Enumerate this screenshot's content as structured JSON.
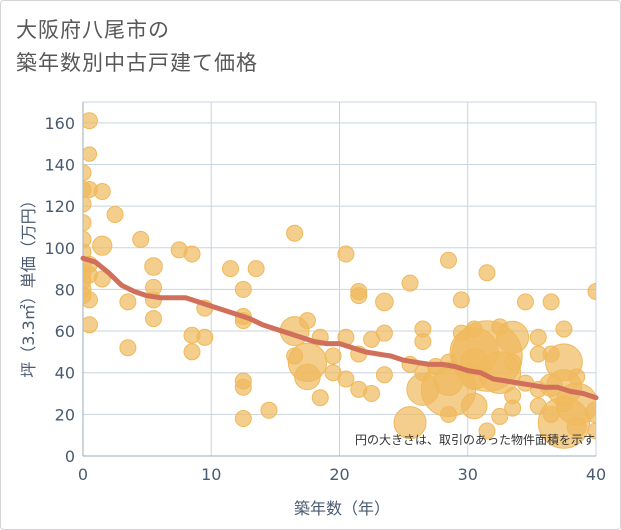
{
  "title_line1": "大阪府八尾市の",
  "title_line2": "築年数別中古戸建て価格",
  "chart_data": {
    "type": "scatter",
    "title": "大阪府八尾市の築年数別中古戸建て価格",
    "xlabel": "築年数（年）",
    "ylabel": "坪（3.3㎡）単価（万円）",
    "xlim": [
      0,
      40
    ],
    "ylim": [
      0,
      170
    ],
    "xticks": [
      0,
      10,
      20,
      30,
      40
    ],
    "yticks": [
      0,
      20,
      40,
      60,
      80,
      100,
      120,
      140,
      160
    ],
    "note": "円の大きさは、取引のあった物件面積を示す",
    "colors": {
      "bubble": "#f0b95c",
      "trend": "#d0705a",
      "grid": "#c8d4e0"
    },
    "bubbles": [
      {
        "x": 0,
        "y": 136,
        "s": 1
      },
      {
        "x": 0,
        "y": 128,
        "s": 1
      },
      {
        "x": 0,
        "y": 121,
        "s": 1
      },
      {
        "x": 0,
        "y": 112,
        "s": 1
      },
      {
        "x": 0,
        "y": 104,
        "s": 1
      },
      {
        "x": 0,
        "y": 98,
        "s": 1
      },
      {
        "x": 0,
        "y": 92,
        "s": 1
      },
      {
        "x": 0,
        "y": 88,
        "s": 1
      },
      {
        "x": 0,
        "y": 84,
        "s": 1
      },
      {
        "x": 0,
        "y": 80,
        "s": 1
      },
      {
        "x": 0,
        "y": 77,
        "s": 1
      },
      {
        "x": 0.5,
        "y": 161,
        "s": 1
      },
      {
        "x": 0.5,
        "y": 145,
        "s": 0.9
      },
      {
        "x": 0.5,
        "y": 128,
        "s": 1
      },
      {
        "x": 0.5,
        "y": 92,
        "s": 1
      },
      {
        "x": 0.5,
        "y": 87,
        "s": 1
      },
      {
        "x": 0.5,
        "y": 75,
        "s": 1
      },
      {
        "x": 0.5,
        "y": 63,
        "s": 1
      },
      {
        "x": 1.5,
        "y": 127,
        "s": 1
      },
      {
        "x": 1.5,
        "y": 101,
        "s": 1.2
      },
      {
        "x": 1.5,
        "y": 85,
        "s": 1
      },
      {
        "x": 2.5,
        "y": 116,
        "s": 1
      },
      {
        "x": 3.5,
        "y": 74,
        "s": 1
      },
      {
        "x": 3.5,
        "y": 52,
        "s": 1
      },
      {
        "x": 4.5,
        "y": 104,
        "s": 1
      },
      {
        "x": 5.5,
        "y": 91,
        "s": 1.1
      },
      {
        "x": 5.5,
        "y": 81,
        "s": 1
      },
      {
        "x": 5.5,
        "y": 75,
        "s": 1
      },
      {
        "x": 5.5,
        "y": 66,
        "s": 1
      },
      {
        "x": 7.5,
        "y": 99,
        "s": 1
      },
      {
        "x": 8.5,
        "y": 97,
        "s": 1
      },
      {
        "x": 8.5,
        "y": 58,
        "s": 1
      },
      {
        "x": 8.5,
        "y": 50,
        "s": 1
      },
      {
        "x": 9.5,
        "y": 71,
        "s": 1
      },
      {
        "x": 9.5,
        "y": 57,
        "s": 1
      },
      {
        "x": 11.5,
        "y": 90,
        "s": 1
      },
      {
        "x": 12.5,
        "y": 80,
        "s": 1
      },
      {
        "x": 12.5,
        "y": 67,
        "s": 1
      },
      {
        "x": 12.5,
        "y": 65,
        "s": 1
      },
      {
        "x": 12.5,
        "y": 36,
        "s": 1
      },
      {
        "x": 12.5,
        "y": 33,
        "s": 1
      },
      {
        "x": 12.5,
        "y": 18,
        "s": 1
      },
      {
        "x": 13.5,
        "y": 90,
        "s": 1
      },
      {
        "x": 14.5,
        "y": 22,
        "s": 1
      },
      {
        "x": 16.5,
        "y": 107,
        "s": 1
      },
      {
        "x": 16.5,
        "y": 60,
        "s": 1.8
      },
      {
        "x": 16.5,
        "y": 48,
        "s": 1
      },
      {
        "x": 17.5,
        "y": 65,
        "s": 1
      },
      {
        "x": 17.5,
        "y": 45,
        "s": 2.4
      },
      {
        "x": 17.5,
        "y": 38,
        "s": 1.6
      },
      {
        "x": 18.5,
        "y": 57,
        "s": 1
      },
      {
        "x": 18.5,
        "y": 28,
        "s": 1
      },
      {
        "x": 19.5,
        "y": 48,
        "s": 1
      },
      {
        "x": 19.5,
        "y": 40,
        "s": 1
      },
      {
        "x": 20.5,
        "y": 97,
        "s": 1
      },
      {
        "x": 20.5,
        "y": 57,
        "s": 1
      },
      {
        "x": 20.5,
        "y": 37,
        "s": 1
      },
      {
        "x": 21.5,
        "y": 79,
        "s": 1
      },
      {
        "x": 21.5,
        "y": 77,
        "s": 1
      },
      {
        "x": 21.5,
        "y": 49,
        "s": 1
      },
      {
        "x": 21.5,
        "y": 32,
        "s": 1
      },
      {
        "x": 22.5,
        "y": 56,
        "s": 1
      },
      {
        "x": 22.5,
        "y": 30,
        "s": 1
      },
      {
        "x": 23.5,
        "y": 74,
        "s": 1.1
      },
      {
        "x": 23.5,
        "y": 59,
        "s": 1
      },
      {
        "x": 23.5,
        "y": 39,
        "s": 1
      },
      {
        "x": 25.5,
        "y": 83,
        "s": 1
      },
      {
        "x": 25.5,
        "y": 44,
        "s": 1
      },
      {
        "x": 25.5,
        "y": 16,
        "s": 2
      },
      {
        "x": 26.5,
        "y": 61,
        "s": 1
      },
      {
        "x": 26.5,
        "y": 55,
        "s": 1
      },
      {
        "x": 26.5,
        "y": 40,
        "s": 1
      },
      {
        "x": 26.5,
        "y": 32,
        "s": 2
      },
      {
        "x": 27.5,
        "y": 43,
        "s": 1
      },
      {
        "x": 28.5,
        "y": 94,
        "s": 1
      },
      {
        "x": 28.5,
        "y": 45,
        "s": 1
      },
      {
        "x": 28.5,
        "y": 36,
        "s": 1.8
      },
      {
        "x": 28.5,
        "y": 32,
        "s": 3.4
      },
      {
        "x": 28.5,
        "y": 20,
        "s": 1
      },
      {
        "x": 29.5,
        "y": 75,
        "s": 1
      },
      {
        "x": 29.5,
        "y": 59,
        "s": 1
      },
      {
        "x": 30.5,
        "y": 61,
        "s": 1
      },
      {
        "x": 30.5,
        "y": 50,
        "s": 3
      },
      {
        "x": 30.5,
        "y": 45,
        "s": 1.7
      },
      {
        "x": 30.5,
        "y": 38,
        "s": 1.6
      },
      {
        "x": 30.5,
        "y": 24,
        "s": 1.6
      },
      {
        "x": 31.5,
        "y": 88,
        "s": 1
      },
      {
        "x": 31.5,
        "y": 48,
        "s": 4.4
      },
      {
        "x": 31.5,
        "y": 12,
        "s": 1
      },
      {
        "x": 32.5,
        "y": 62,
        "s": 1
      },
      {
        "x": 32.5,
        "y": 40,
        "s": 2.6
      },
      {
        "x": 32.5,
        "y": 19,
        "s": 1
      },
      {
        "x": 33.5,
        "y": 57,
        "s": 2
      },
      {
        "x": 33.5,
        "y": 45,
        "s": 1
      },
      {
        "x": 33.5,
        "y": 29,
        "s": 1
      },
      {
        "x": 33.5,
        "y": 23,
        "s": 1
      },
      {
        "x": 34.5,
        "y": 74,
        "s": 1
      },
      {
        "x": 34.5,
        "y": 35,
        "s": 1
      },
      {
        "x": 35.5,
        "y": 57,
        "s": 1
      },
      {
        "x": 35.5,
        "y": 49,
        "s": 1
      },
      {
        "x": 35.5,
        "y": 32,
        "s": 1
      },
      {
        "x": 35.5,
        "y": 24,
        "s": 1
      },
      {
        "x": 36.5,
        "y": 74,
        "s": 1
      },
      {
        "x": 36.5,
        "y": 49,
        "s": 1
      },
      {
        "x": 36.5,
        "y": 34,
        "s": 1.4
      },
      {
        "x": 36.5,
        "y": 20,
        "s": 1
      },
      {
        "x": 37.5,
        "y": 61,
        "s": 1
      },
      {
        "x": 37.5,
        "y": 45,
        "s": 2.3
      },
      {
        "x": 37.5,
        "y": 33,
        "s": 2.2
      },
      {
        "x": 37.5,
        "y": 25,
        "s": 1
      },
      {
        "x": 37.5,
        "y": 16,
        "s": 3.2
      },
      {
        "x": 38.5,
        "y": 38,
        "s": 1
      },
      {
        "x": 38.5,
        "y": 25,
        "s": 2.6
      },
      {
        "x": 38.5,
        "y": 14,
        "s": 1.2
      },
      {
        "x": 40,
        "y": 79,
        "s": 1
      },
      {
        "x": 40,
        "y": 21,
        "s": 1.3
      },
      {
        "x": 40,
        "y": 12,
        "s": 1
      }
    ],
    "trend": {
      "x": [
        0,
        1,
        2,
        3,
        4,
        5,
        6,
        7,
        8,
        9,
        10,
        11,
        12,
        13,
        14,
        15,
        16,
        17,
        18,
        19,
        20,
        21,
        22,
        23,
        24,
        25,
        26,
        27,
        28,
        29,
        30,
        31,
        32,
        33,
        34,
        35,
        36,
        37,
        38,
        39,
        40
      ],
      "y": [
        95,
        93,
        88,
        82,
        79,
        77,
        76,
        76,
        76,
        74,
        72,
        70,
        68,
        66,
        63,
        61,
        59,
        57,
        55,
        54,
        54,
        52,
        50,
        49,
        48,
        46,
        45,
        44,
        44,
        43,
        41,
        40,
        37,
        36,
        35,
        34,
        33,
        33,
        31,
        30,
        28
      ]
    }
  }
}
